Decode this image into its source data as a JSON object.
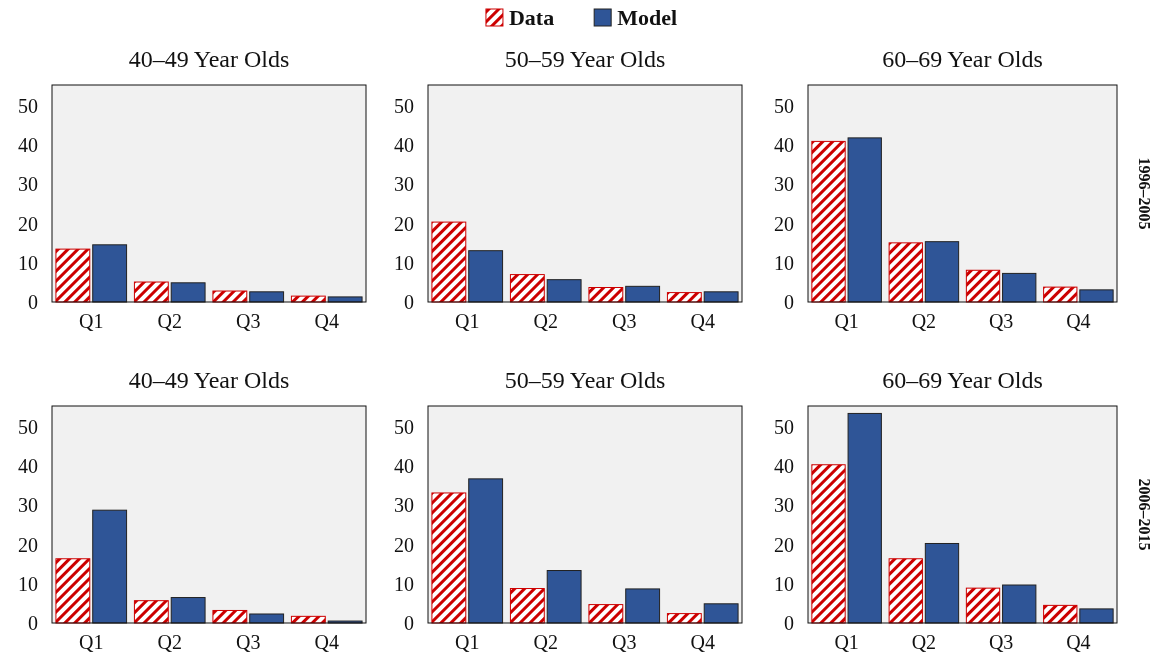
{
  "chart_data": [
    {
      "type": "bar",
      "title": "40–49 Year Olds",
      "categories": [
        "Q1",
        "Q2",
        "Q3",
        "Q4"
      ],
      "legend": "top",
      "series": [
        {
          "name": "Data",
          "color": "#cc0000",
          "values": [
            13.5,
            5.1,
            2.8,
            1.5
          ]
        },
        {
          "name": "Model",
          "color": "#2f5597",
          "values": [
            14.6,
            4.9,
            2.6,
            1.3
          ]
        }
      ],
      "ylim": [
        0,
        55.4
      ],
      "yticks": [
        0,
        10,
        20,
        30,
        40,
        50
      ]
    },
    {
      "type": "bar",
      "title": "50–59 Year Olds",
      "categories": [
        "Q1",
        "Q2",
        "Q3",
        "Q4"
      ],
      "series": [
        {
          "color": "#cc0000",
          "values": [
            20.4,
            7.0,
            3.7,
            2.4
          ]
        },
        {
          "color": "#2f5597",
          "values": [
            13.1,
            5.7,
            4.0,
            2.6
          ]
        }
      ],
      "ylim": [
        0,
        55.4
      ],
      "yticks": [
        0,
        10,
        20,
        30,
        40,
        50
      ]
    },
    {
      "type": "bar",
      "title": "60–69 Year Olds",
      "categories": [
        "Q1",
        "Q2",
        "Q3",
        "Q4"
      ],
      "annotations": [
        "1996–2005"
      ],
      "series": [
        {
          "color": "#cc0000",
          "values": [
            41.0,
            15.1,
            8.1,
            3.8
          ]
        },
        {
          "color": "#2f5597",
          "values": [
            41.9,
            15.4,
            7.3,
            3.1
          ]
        }
      ],
      "ylim": [
        0,
        55.4
      ],
      "yticks": [
        0,
        10,
        20,
        30,
        40,
        50
      ]
    },
    {
      "type": "bar",
      "title": "40–49 Year Olds",
      "categories": [
        "Q1",
        "Q2",
        "Q3",
        "Q4"
      ],
      "series": [
        {
          "color": "#cc0000",
          "values": [
            16.4,
            5.7,
            3.2,
            1.7
          ]
        },
        {
          "color": "#2f5597",
          "values": [
            28.8,
            6.5,
            2.3,
            0.5
          ]
        }
      ],
      "ylim": [
        0,
        55.4
      ],
      "yticks": [
        0,
        10,
        20,
        30,
        40,
        50
      ]
    },
    {
      "type": "bar",
      "title": "50–59 Year Olds",
      "categories": [
        "Q1",
        "Q2",
        "Q3",
        "Q4"
      ],
      "series": [
        {
          "color": "#cc0000",
          "values": [
            33.2,
            8.8,
            4.7,
            2.4
          ]
        },
        {
          "color": "#2f5597",
          "values": [
            36.8,
            13.4,
            8.7,
            4.9
          ]
        }
      ],
      "ylim": [
        0,
        55.4
      ],
      "yticks": [
        0,
        10,
        20,
        30,
        40,
        50
      ]
    },
    {
      "type": "bar",
      "title": "60–69 Year Olds",
      "categories": [
        "Q1",
        "Q2",
        "Q3",
        "Q4"
      ],
      "annotations": [
        "2006–2015"
      ],
      "series": [
        {
          "color": "#cc0000",
          "values": [
            40.4,
            16.4,
            8.9,
            4.5
          ]
        },
        {
          "color": "#2f5597",
          "values": [
            53.5,
            20.3,
            9.7,
            3.6
          ]
        }
      ],
      "ylim": [
        0,
        55.4
      ],
      "yticks": [
        0,
        10,
        20,
        30,
        40,
        50
      ]
    }
  ]
}
